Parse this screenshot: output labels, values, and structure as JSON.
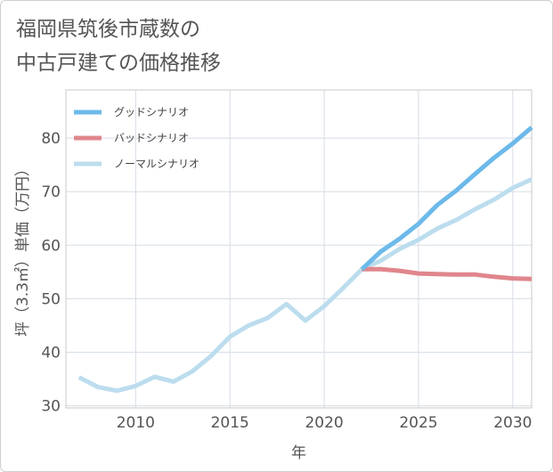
{
  "title_lines": [
    "福岡県筑後市蔵数の",
    "中古戸建ての価格推移"
  ],
  "chart_data": {
    "type": "line",
    "xlabel": "年",
    "ylabel": "坪（3.3㎡）単価（万円）",
    "xlim": [
      2006.3,
      2031
    ],
    "ylim": [
      29.6,
      89
    ],
    "xticks": [
      2010,
      2015,
      2020,
      2025,
      2030
    ],
    "yticks": [
      30,
      40,
      50,
      60,
      70,
      80
    ],
    "grid": true,
    "legend_position": "top-left",
    "series": [
      {
        "name": "グッドシナリオ",
        "color": "#6cb9ea",
        "x": [
          2022,
          2023,
          2024,
          2025,
          2026,
          2027,
          2028,
          2029,
          2030,
          2031
        ],
        "y": [
          55.5,
          58.8,
          61.2,
          64.0,
          67.5,
          70.2,
          73.3,
          76.3,
          79.0,
          82.0
        ]
      },
      {
        "name": "バッドシナリオ",
        "color": "#e0868c",
        "x": [
          2022,
          2023,
          2024,
          2025,
          2026,
          2027,
          2028,
          2029,
          2030,
          2031
        ],
        "y": [
          55.5,
          55.5,
          55.2,
          54.7,
          54.6,
          54.5,
          54.5,
          54.1,
          53.8,
          53.7
        ]
      },
      {
        "name": "ノーマルシナリオ",
        "color": "#bcddee",
        "x": [
          2007,
          2008,
          2009,
          2010,
          2011,
          2012,
          2013,
          2014,
          2015,
          2016,
          2017,
          2018,
          2019,
          2020,
          2021,
          2022,
          2023,
          2024,
          2025,
          2026,
          2027,
          2028,
          2029,
          2030,
          2031
        ],
        "y": [
          35.3,
          33.5,
          32.8,
          33.7,
          35.4,
          34.5,
          36.4,
          39.3,
          42.9,
          45.0,
          46.4,
          49.0,
          45.9,
          48.6,
          52.0,
          55.5,
          57.1,
          59.3,
          61.0,
          63.1,
          64.7,
          66.7,
          68.5,
          70.7,
          72.3
        ]
      }
    ]
  }
}
